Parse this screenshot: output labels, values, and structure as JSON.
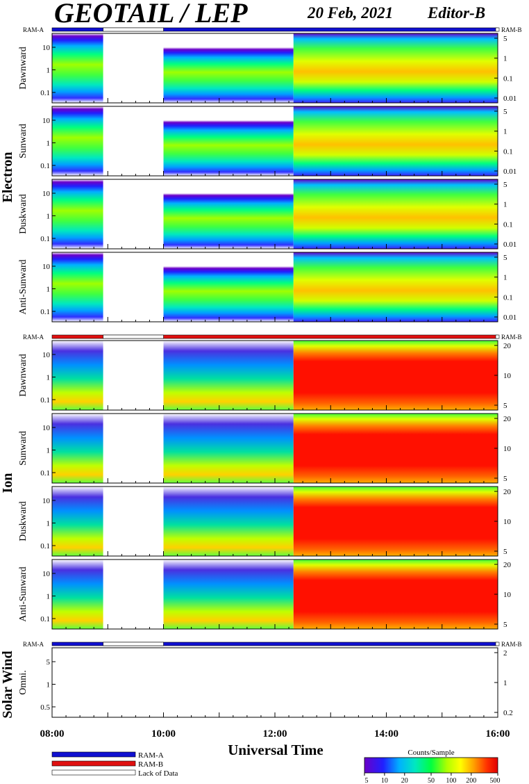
{
  "header": {
    "title": "GEOTAIL / LEP",
    "date": "20 Feb, 2021",
    "editor": "Editor-B"
  },
  "ram_labels": {
    "a": "RAM-A",
    "b": "RAM-B"
  },
  "sections": {
    "electron": {
      "label": "Electron",
      "panels": [
        "Dawnward",
        "Sunward",
        "Duskward",
        "Anti-Sunward"
      ],
      "left_ticks": [
        "10",
        "1",
        "0.1"
      ],
      "right_ticks": [
        "5",
        "1",
        "0.1",
        "0.01"
      ]
    },
    "ion": {
      "label": "Ion",
      "panels": [
        "Dawnward",
        "Sunward",
        "Duskward",
        "Anti-Sunward"
      ],
      "left_ticks": [
        "10",
        "1",
        "0.1"
      ],
      "right_ticks": [
        "20",
        "10",
        "5"
      ]
    },
    "solar_wind": {
      "label": "Solar Wind",
      "panels": [
        "Omni."
      ],
      "left_ticks": [
        "5",
        "1",
        "0.5"
      ],
      "right_ticks": [
        "2",
        "1",
        "0.2"
      ]
    }
  },
  "chart_data": {
    "type": "heatmap",
    "title": "GEOTAIL / LEP",
    "xlabel": "Universal Time",
    "x_ticks": [
      "08:00",
      "10:00",
      "12:00",
      "14:00",
      "16:00"
    ],
    "xlim": [
      "08:00",
      "16:00"
    ],
    "data_gap": [
      "08:55",
      "10:00"
    ],
    "legend": {
      "items": [
        {
          "label": "RAM-A",
          "color": "#1010d0"
        },
        {
          "label": "RAM-B",
          "color": "#e01010"
        },
        {
          "label": "Lack of Data",
          "color": "#ffffff"
        }
      ]
    },
    "colorbar": {
      "title": "Counts/Sample",
      "ticks": [
        "5",
        "10",
        "20",
        "50",
        "100",
        "200",
        "500"
      ],
      "colors": [
        "#6a00c8",
        "#2020ff",
        "#00b0ff",
        "#00e8c0",
        "#00ff40",
        "#b0ff00",
        "#ffff00",
        "#ffa000",
        "#ff3000",
        "#e00000"
      ]
    }
  }
}
